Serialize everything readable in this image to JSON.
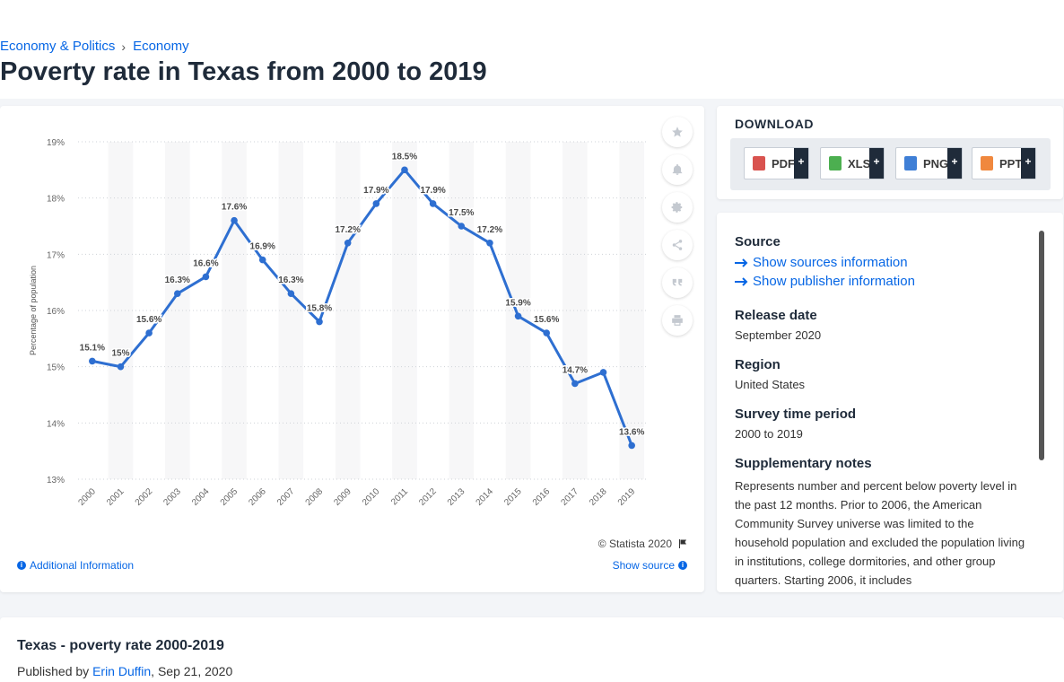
{
  "breadcrumb": {
    "items": [
      "Economy & Politics",
      "Economy"
    ],
    "separator": "›"
  },
  "page": {
    "title": "Poverty rate in Texas from 2000 to 2019"
  },
  "chart_data": {
    "type": "line",
    "ylabel": "Percentage of population",
    "y_ticks": [
      "13%",
      "14%",
      "15%",
      "16%",
      "17%",
      "18%",
      "19%"
    ],
    "ylim": [
      13,
      19
    ],
    "grid": true,
    "categories": [
      "2000",
      "2001",
      "2002",
      "2003",
      "2004",
      "2005",
      "2006",
      "2007",
      "2008",
      "2009",
      "2010",
      "2011",
      "2012",
      "2013",
      "2014",
      "2015",
      "2016",
      "2017",
      "2018",
      "2019"
    ],
    "series": [
      {
        "color": "#2e6fd1",
        "values": [
          15.1,
          15.0,
          15.6,
          16.3,
          16.6,
          17.6,
          16.9,
          16.3,
          15.8,
          17.2,
          17.9,
          18.5,
          17.9,
          17.5,
          17.2,
          15.9,
          15.6,
          14.7,
          14.9,
          13.6
        ],
        "labels": [
          "15.1%",
          "15%",
          "15.6%",
          "16.3%",
          "16.6%",
          "17.6%",
          "16.9%",
          "16.3%",
          "15.8%",
          "17.2%",
          "17.9%",
          "18.5%",
          "17.9%",
          "17.5%",
          "17.2%",
          "15.9%",
          "15.6%",
          "14.7%",
          "",
          "13.6%"
        ]
      }
    ]
  },
  "chart_footer": {
    "copyright": "© Statista 2020",
    "additional_info": "Additional Information",
    "show_source": "Show source"
  },
  "tools": [
    "star-icon",
    "bell-icon",
    "gear-icon",
    "share-icon",
    "quote-icon",
    "print-icon"
  ],
  "download": {
    "title": "DOWNLOAD",
    "buttons": [
      {
        "label": "PDF",
        "color": "#d9534f"
      },
      {
        "label": "XLS",
        "color": "#4caf50"
      },
      {
        "label": "PNG",
        "color": "#3f7fd6"
      },
      {
        "label": "PPT",
        "color": "#f0883e"
      }
    ],
    "plus": "+"
  },
  "meta": {
    "source_label": "Source",
    "show_sources": "Show sources information",
    "show_publisher": "Show publisher information",
    "release_label": "Release date",
    "release_value": "September 2020",
    "region_label": "Region",
    "region_value": "United States",
    "period_label": "Survey time period",
    "period_value": "2000 to 2019",
    "notes_label": "Supplementary notes",
    "notes_value": "Represents number and percent below poverty level in the past 12 months. Prior to 2006, the American Community Survey universe was limited to the household population and excluded the population living in institutions, college dormitories, and other group quarters. Starting 2006, it includes"
  },
  "bottom": {
    "title": "Texas - poverty rate 2000-2019",
    "published_prefix": "Published by",
    "author": "Erin Duffin",
    "date": ", Sep 21, 2020"
  }
}
